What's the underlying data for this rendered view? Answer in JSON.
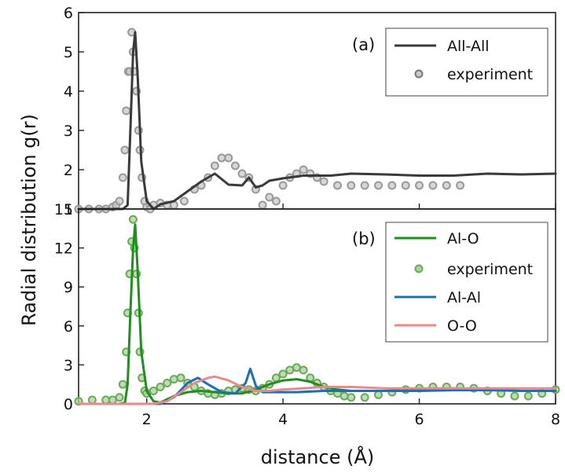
{
  "chart_data": [
    {
      "type": "line",
      "panel_label": "(a)",
      "xlabel": "distance (Å)",
      "ylabel": "Radial distribution  g(r)",
      "xlim": [
        1,
        8
      ],
      "ylim": [
        1,
        6
      ],
      "xticks": [
        2,
        4,
        6,
        8
      ],
      "yticks": [
        1,
        2,
        3,
        4,
        5,
        6
      ],
      "legend_position": "top-right",
      "series": [
        {
          "name": "All-All",
          "kind": "line",
          "color": "#3a3a3a",
          "x": [
            1.0,
            1.5,
            1.65,
            1.72,
            1.76,
            1.8,
            1.83,
            1.87,
            1.92,
            2.0,
            2.1,
            2.2,
            2.4,
            2.6,
            2.8,
            3.0,
            3.2,
            3.4,
            3.5,
            3.6,
            3.7,
            3.8,
            4.0,
            4.3,
            4.7,
            5.0,
            5.5,
            6.0,
            6.5,
            7.0,
            7.5,
            8.0
          ],
          "y": [
            1.0,
            1.0,
            1.0,
            1.1,
            3.0,
            5.0,
            5.5,
            4.3,
            2.2,
            1.2,
            1.0,
            1.12,
            1.2,
            1.45,
            1.7,
            1.9,
            1.62,
            1.6,
            1.8,
            1.55,
            1.6,
            1.72,
            1.78,
            1.85,
            1.85,
            1.9,
            1.88,
            1.85,
            1.85,
            1.9,
            1.88,
            1.9
          ]
        },
        {
          "name": "experiment",
          "kind": "scatter",
          "color": "#999999",
          "x": [
            1.0,
            1.15,
            1.3,
            1.4,
            1.5,
            1.55,
            1.6,
            1.65,
            1.68,
            1.7,
            1.73,
            1.75,
            1.78,
            1.8,
            1.82,
            1.85,
            1.88,
            1.9,
            1.93,
            1.97,
            2.0,
            2.05,
            2.1,
            2.2,
            2.3,
            2.4,
            2.55,
            2.7,
            2.8,
            2.9,
            3.0,
            3.1,
            3.2,
            3.3,
            3.4,
            3.5,
            3.6,
            3.7,
            3.8,
            3.9,
            4.0,
            4.1,
            4.2,
            4.3,
            4.4,
            4.5,
            4.6,
            4.8,
            5.0,
            5.2,
            5.4,
            5.6,
            5.8,
            6.0,
            6.2,
            6.4,
            6.6
          ],
          "y": [
            1.0,
            1.0,
            1.0,
            1.0,
            1.05,
            1.1,
            1.2,
            1.8,
            2.5,
            3.5,
            4.5,
            4.5,
            5.5,
            5.0,
            4.5,
            4.0,
            3.0,
            2.5,
            1.8,
            1.2,
            1.05,
            1.0,
            1.1,
            1.15,
            1.1,
            1.1,
            1.2,
            1.5,
            1.6,
            1.8,
            2.1,
            2.3,
            2.3,
            2.1,
            1.9,
            1.8,
            1.5,
            1.1,
            1.3,
            1.2,
            1.6,
            1.8,
            1.9,
            2.0,
            1.9,
            1.8,
            1.7,
            1.6,
            1.6,
            1.6,
            1.6,
            1.6,
            1.6,
            1.6,
            1.6,
            1.6,
            1.6
          ]
        }
      ]
    },
    {
      "type": "line",
      "panel_label": "(b)",
      "xlabel": "distance (Å)",
      "ylabel": "",
      "xlim": [
        1,
        8
      ],
      "ylim": [
        0,
        15
      ],
      "xticks": [
        2,
        4,
        6,
        8
      ],
      "yticks": [
        0,
        3,
        6,
        9,
        12,
        15
      ],
      "xticklabels": [
        "2",
        "4",
        "6",
        "8"
      ],
      "yticklabels": [
        "0",
        "3",
        "6",
        "9",
        "12",
        "15"
      ],
      "legend_position": "top-right",
      "series": [
        {
          "name": "Al-O",
          "kind": "line",
          "color": "#1f8f1f",
          "x": [
            1.0,
            1.6,
            1.68,
            1.72,
            1.76,
            1.8,
            1.83,
            1.87,
            1.92,
            2.0,
            2.1,
            2.2,
            2.4,
            2.6,
            2.8,
            3.0,
            3.2,
            3.4,
            3.6,
            3.8,
            4.0,
            4.2,
            4.4,
            4.6,
            4.8,
            5.0,
            5.5,
            6.0,
            6.5,
            7.0,
            7.5,
            8.0
          ],
          "y": [
            0.0,
            0.0,
            0.1,
            1.5,
            7.0,
            12.0,
            13.8,
            10.0,
            4.0,
            1.0,
            0.2,
            0.1,
            0.6,
            0.9,
            1.0,
            0.9,
            0.8,
            0.8,
            1.1,
            1.5,
            1.8,
            1.9,
            1.7,
            1.3,
            1.1,
            1.0,
            1.0,
            1.1,
            1.2,
            1.1,
            1.0,
            1.0
          ]
        },
        {
          "name": "experiment",
          "kind": "scatter",
          "color": "#6aa85a",
          "x": [
            1.0,
            1.2,
            1.4,
            1.5,
            1.6,
            1.65,
            1.7,
            1.72,
            1.75,
            1.78,
            1.8,
            1.82,
            1.85,
            1.88,
            1.9,
            1.93,
            1.97,
            2.0,
            2.1,
            2.2,
            2.3,
            2.4,
            2.5,
            2.6,
            2.7,
            2.8,
            2.9,
            3.0,
            3.1,
            3.2,
            3.3,
            3.4,
            3.5,
            3.6,
            3.7,
            3.8,
            3.9,
            4.0,
            4.1,
            4.2,
            4.3,
            4.4,
            4.5,
            4.6,
            4.7,
            4.8,
            4.9,
            5.0,
            5.2,
            5.4,
            5.6,
            5.8,
            6.0,
            6.2,
            6.4,
            6.6,
            6.8,
            7.0,
            7.2,
            7.4,
            7.6,
            7.8,
            8.0
          ],
          "y": [
            0.2,
            0.3,
            0.3,
            0.3,
            0.5,
            1.5,
            4.0,
            7.0,
            10.0,
            12.5,
            14.2,
            12.0,
            10.0,
            7.0,
            4.0,
            2.0,
            1.0,
            0.8,
            1.0,
            1.3,
            1.6,
            1.9,
            2.0,
            1.6,
            1.3,
            1.0,
            0.8,
            0.7,
            0.8,
            1.0,
            1.1,
            1.2,
            1.1,
            1.0,
            1.2,
            1.5,
            2.0,
            2.3,
            2.6,
            2.8,
            2.6,
            2.0,
            1.6,
            1.3,
            1.0,
            0.8,
            0.6,
            0.5,
            0.5,
            0.7,
            0.9,
            1.1,
            1.2,
            1.3,
            1.3,
            1.3,
            1.2,
            1.0,
            0.8,
            0.6,
            0.6,
            0.8,
            1.1
          ]
        },
        {
          "name": "Al-Al",
          "kind": "line",
          "color": "#1f6fb5",
          "x": [
            1.0,
            2.2,
            2.4,
            2.6,
            2.75,
            2.9,
            3.1,
            3.3,
            3.45,
            3.52,
            3.6,
            3.7,
            3.9,
            4.2,
            4.6,
            5.0,
            5.5,
            6.0,
            6.5,
            7.0,
            7.5,
            8.0
          ],
          "y": [
            0.0,
            0.0,
            0.5,
            1.6,
            2.0,
            1.5,
            0.9,
            0.8,
            1.6,
            2.7,
            1.4,
            0.9,
            0.9,
            0.9,
            1.0,
            1.0,
            1.0,
            1.0,
            1.05,
            1.05,
            1.0,
            1.0
          ],
          "xticklabels": []
        },
        {
          "name": "O-O",
          "kind": "line",
          "color": "#e98a8a",
          "x": [
            1.0,
            2.1,
            2.3,
            2.5,
            2.7,
            2.9,
            3.0,
            3.2,
            3.4,
            3.6,
            3.8,
            4.0,
            4.3,
            4.6,
            5.0,
            5.5,
            6.0,
            6.5,
            7.0,
            7.5,
            8.0
          ],
          "y": [
            0.0,
            0.0,
            0.2,
            0.9,
            1.6,
            2.0,
            2.1,
            1.8,
            1.3,
            1.0,
            1.0,
            1.1,
            1.2,
            1.3,
            1.3,
            1.2,
            1.2,
            1.2,
            1.2,
            1.2,
            1.2
          ]
        }
      ]
    }
  ]
}
